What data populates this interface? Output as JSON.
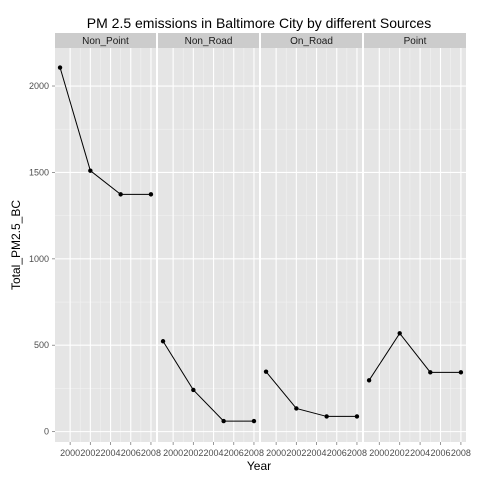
{
  "chart_data": {
    "type": "line",
    "title": "PM 2.5 emissions in Baltimore City by different Sources",
    "xlabel": "Year",
    "ylabel": "Total_PM2.5_BC",
    "x": [
      1999,
      2002,
      2005,
      2008
    ],
    "x_tick_labels": [
      "2000",
      "2002",
      "2004",
      "2006",
      "2008"
    ],
    "xlim": [
      1998.5,
      2008.5
    ],
    "ylim": [
      -60,
      2220
    ],
    "y_ticks": [
      0,
      500,
      1000,
      1500,
      2000
    ],
    "grid": true,
    "facets": [
      "Non_Point",
      "Non_Road",
      "On_Road",
      "Point"
    ],
    "series": [
      {
        "facet": "Non_Point",
        "values": [
          2107,
          1510,
          1373,
          1373
        ]
      },
      {
        "facet": "Non_Road",
        "values": [
          523,
          241,
          61,
          61
        ]
      },
      {
        "facet": "On_Road",
        "values": [
          347,
          134,
          88,
          88
        ]
      },
      {
        "facet": "Point",
        "values": [
          297,
          569,
          343,
          343
        ]
      }
    ],
    "colors": {
      "panel_bg": "#e5e5e5",
      "strip_bg": "#cccccc",
      "grid_major": "#ffffff",
      "grid_minor": "#f2f2f2",
      "line": "#000000",
      "point": "#000000"
    }
  }
}
